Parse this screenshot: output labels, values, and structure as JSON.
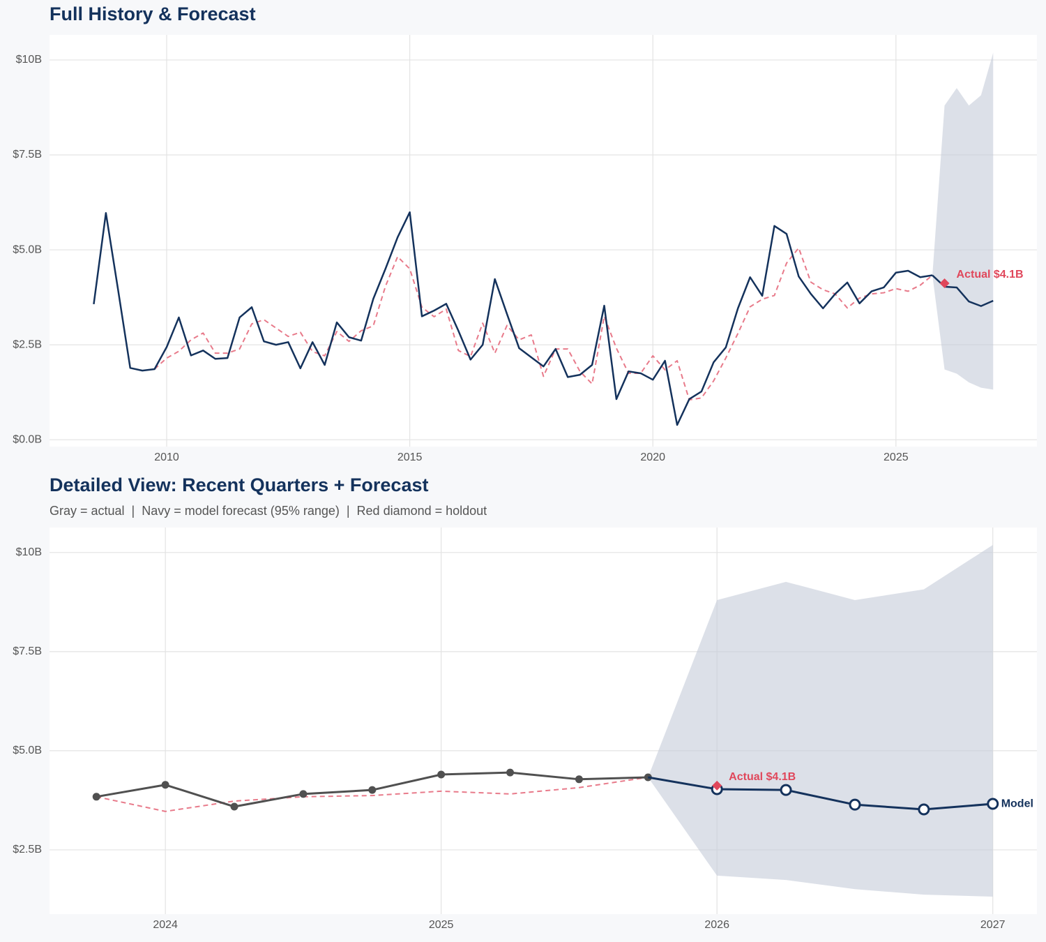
{
  "chart_data": [
    {
      "type": "line",
      "title": "Full History & Forecast",
      "x": [
        2008.5,
        2008.75,
        2009,
        2009.25,
        2009.5,
        2009.75,
        2010,
        2010.25,
        2010.5,
        2010.75,
        2011,
        2011.25,
        2011.5,
        2011.75,
        2012,
        2012.25,
        2012.5,
        2012.75,
        2013,
        2013.25,
        2013.5,
        2013.75,
        2014,
        2014.25,
        2014.5,
        2014.75,
        2015,
        2015.25,
        2015.5,
        2015.75,
        2016,
        2016.25,
        2016.5,
        2016.75,
        2017,
        2017.25,
        2017.5,
        2017.75,
        2018,
        2018.25,
        2018.5,
        2018.75,
        2019,
        2019.25,
        2019.5,
        2019.75,
        2020,
        2020.25,
        2020.5,
        2020.75,
        2021,
        2021.25,
        2021.5,
        2021.75,
        2022,
        2022.25,
        2022.5,
        2022.75,
        2023,
        2023.25,
        2023.5,
        2023.75,
        2024,
        2024.25,
        2024.5,
        2024.75,
        2025,
        2025.25,
        2025.5,
        2025.75,
        2026,
        2026.25,
        2026.5,
        2026.75,
        2027
      ],
      "series": [
        {
          "color": "#e87a8a",
          "style": "dashed",
          "width": 2,
          "values": [
            null,
            null,
            null,
            null,
            null,
            1.86,
            2.15,
            2.33,
            2.63,
            2.81,
            2.28,
            2.28,
            2.39,
            3.05,
            3.16,
            2.94,
            2.72,
            2.83,
            2.32,
            2.21,
            2.85,
            2.59,
            2.87,
            3.0,
            4.04,
            4.82,
            4.5,
            3.49,
            3.24,
            3.44,
            2.35,
            2.19,
            3.07,
            2.28,
            3.01,
            2.63,
            2.76,
            1.67,
            2.39,
            2.39,
            1.8,
            1.47,
            3.25,
            2.41,
            1.75,
            1.75,
            2.21,
            1.84,
            2.08,
            1.05,
            1.1,
            1.55,
            2.15,
            2.8,
            3.5,
            3.7,
            3.8,
            4.65,
            5.05,
            4.15,
            3.95,
            3.84,
            3.47,
            3.73,
            3.84,
            3.87,
            3.98,
            3.91,
            4.07,
            4.33,
            null,
            null,
            null,
            null,
            null
          ]
        },
        {
          "color": "#14325c",
          "style": "solid",
          "width": 2.5,
          "values": [
            3.57,
            5.97,
            3.95,
            1.89,
            1.82,
            1.86,
            2.44,
            3.22,
            2.22,
            2.35,
            2.13,
            2.15,
            3.22,
            3.49,
            2.59,
            2.5,
            2.57,
            1.88,
            2.57,
            1.97,
            3.09,
            2.7,
            2.61,
            3.71,
            4.5,
            5.33,
            5.99,
            3.25,
            3.4,
            3.58,
            2.87,
            2.11,
            2.5,
            4.23,
            3.31,
            2.41,
            2.17,
            1.93,
            2.39,
            1.65,
            1.71,
            1.97,
            3.53,
            1.07,
            1.8,
            1.75,
            1.58,
            2.08,
            0.39,
            1.07,
            1.27,
            2.04,
            2.43,
            3.46,
            4.28,
            3.79,
            5.63,
            5.42,
            4.3,
            3.84,
            3.46,
            3.84,
            4.14,
            3.59,
            3.91,
            4.01,
            4.4,
            4.45,
            4.28,
            4.33,
            null,
            null,
            null,
            null,
            null
          ]
        },
        {
          "color": "#14325c",
          "style": "solid",
          "width": 2.5,
          "x": [
            2025.75,
            2026,
            2026.25,
            2026.5,
            2026.75,
            2027
          ],
          "values": [
            4.33,
            4.03,
            4.01,
            3.64,
            3.52,
            3.66
          ]
        }
      ],
      "band": {
        "color": "#c5ccd8",
        "x": [
          2025.75,
          2026,
          2026.25,
          2026.5,
          2026.75,
          2027
        ],
        "upper": [
          4.33,
          8.8,
          9.26,
          8.8,
          9.07,
          10.19
        ],
        "lower": [
          4.33,
          1.85,
          1.74,
          1.51,
          1.37,
          1.32
        ]
      },
      "holdout": {
        "x": 2026,
        "value": 4.12,
        "label": "Actual $4.1B",
        "color": "#e0475b"
      },
      "xlim": [
        2007.59,
        2027.9
      ],
      "ylim": [
        -0.18,
        10.66
      ],
      "xticks": [
        2010,
        2015,
        2020,
        2025
      ],
      "yticks": [
        {
          "value": 0,
          "label": "$0.0B"
        },
        {
          "value": 2.5,
          "label": "$2.5B"
        },
        {
          "value": 5,
          "label": "$5.0B"
        },
        {
          "value": 7.5,
          "label": "$7.5B"
        },
        {
          "value": 10,
          "label": "$10B"
        }
      ],
      "grid": true
    },
    {
      "type": "line",
      "title": "Detailed View: Recent Quarters + Forecast",
      "subtitle": "Gray = actual  |  Navy = model forecast (95% range)  |  Red diamond = holdout",
      "x": [
        2023.75,
        2024,
        2024.25,
        2024.5,
        2024.75,
        2025,
        2025.25,
        2025.5,
        2025.75
      ],
      "series": [
        {
          "color": "#e87a8a",
          "style": "dashed",
          "width": 2,
          "values": [
            3.84,
            3.47,
            3.73,
            3.84,
            3.87,
            3.98,
            3.91,
            4.07,
            4.33
          ]
        },
        {
          "color": "#505050",
          "style": "solid",
          "width": 3,
          "marker": "dot",
          "values": [
            3.84,
            4.14,
            3.59,
            3.91,
            4.01,
            4.4,
            4.45,
            4.28,
            4.33
          ]
        },
        {
          "name": "Model",
          "color": "#14325c",
          "style": "solid",
          "width": 3,
          "marker": "ring",
          "x": [
            2025.75,
            2026,
            2026.25,
            2026.5,
            2026.75,
            2027
          ],
          "values": [
            4.33,
            4.03,
            4.01,
            3.64,
            3.52,
            3.66
          ]
        }
      ],
      "band": {
        "color": "#c5ccd8",
        "x": [
          2025.75,
          2026,
          2026.25,
          2026.5,
          2026.75,
          2027
        ],
        "upper": [
          4.33,
          8.8,
          9.26,
          8.8,
          9.07,
          10.19
        ],
        "lower": [
          4.33,
          1.85,
          1.74,
          1.51,
          1.37,
          1.32
        ]
      },
      "holdout": {
        "x": 2026,
        "value": 4.12,
        "label": "Actual $4.1B",
        "color": "#e0475b"
      },
      "xlim": [
        2023.58,
        2027.16
      ],
      "ylim": [
        0.88,
        10.63
      ],
      "xticks": [
        2024,
        2025,
        2026,
        2027
      ],
      "yticks": [
        {
          "value": 2.5,
          "label": "$2.5B"
        },
        {
          "value": 5,
          "label": "$5.0B"
        },
        {
          "value": 7.5,
          "label": "$7.5B"
        },
        {
          "value": 10,
          "label": "$10B"
        }
      ],
      "grid": true
    }
  ]
}
